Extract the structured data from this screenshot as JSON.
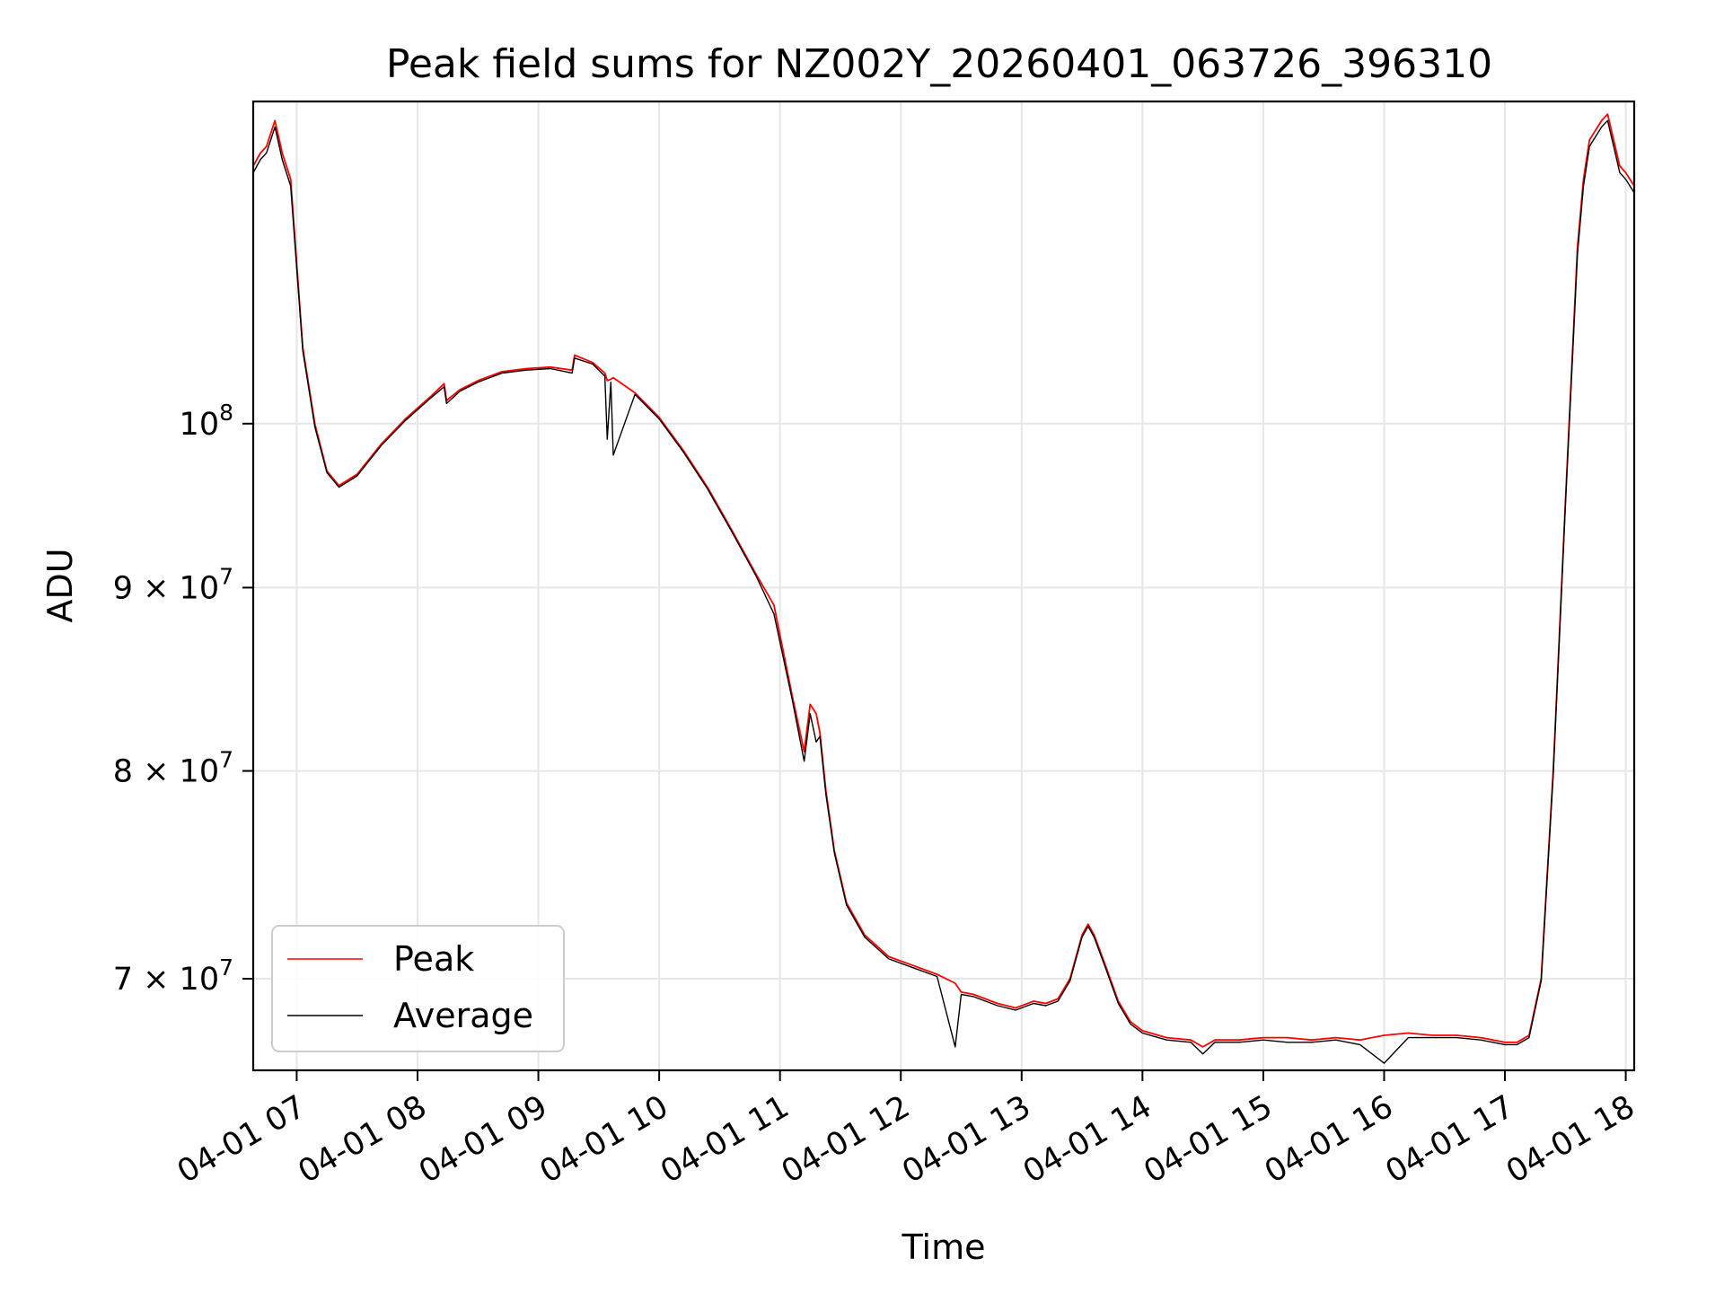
{
  "chart_data": {
    "type": "line",
    "title": "Peak field sums for NZ002Y_20260401_063726_396310",
    "xlabel": "Time",
    "ylabel": "ADU",
    "x_unit": "hours (2026-04-01, local time)",
    "xlim": [
      6.64,
      18.07
    ],
    "ylim": [
      66000000,
      123000000
    ],
    "yscale": "log",
    "grid": true,
    "legend_position": "lower-left",
    "x_ticks": [
      {
        "value": 7,
        "label": "04-01 07"
      },
      {
        "value": 8,
        "label": "04-01 08"
      },
      {
        "value": 9,
        "label": "04-01 09"
      },
      {
        "value": 10,
        "label": "04-01 10"
      },
      {
        "value": 11,
        "label": "04-01 11"
      },
      {
        "value": 12,
        "label": "04-01 12"
      },
      {
        "value": 13,
        "label": "04-01 13"
      },
      {
        "value": 14,
        "label": "04-01 14"
      },
      {
        "value": 15,
        "label": "04-01 15"
      },
      {
        "value": 16,
        "label": "04-01 16"
      },
      {
        "value": 17,
        "label": "04-01 17"
      },
      {
        "value": 18,
        "label": "04-01 18"
      }
    ],
    "y_ticks": [
      {
        "value": 70000000,
        "base": "7 × 10",
        "exp": "7"
      },
      {
        "value": 80000000,
        "base": "8 × 10",
        "exp": "7"
      },
      {
        "value": 90000000,
        "base": "9 × 10",
        "exp": "7"
      },
      {
        "value": 100000000,
        "base": "10",
        "exp": "8"
      }
    ],
    "series": [
      {
        "name": "Peak",
        "color": "#ff0000",
        "x": [
          6.64,
          6.7,
          6.75,
          6.82,
          6.88,
          6.95,
          7.05,
          7.15,
          7.25,
          7.35,
          7.5,
          7.7,
          7.9,
          8.1,
          8.22,
          8.24,
          8.35,
          8.5,
          8.7,
          8.9,
          9.1,
          9.28,
          9.3,
          9.45,
          9.55,
          9.57,
          9.6,
          9.62,
          9.8,
          10.0,
          10.2,
          10.4,
          10.6,
          10.8,
          10.95,
          11.1,
          11.2,
          11.25,
          11.3,
          11.33,
          11.38,
          11.45,
          11.55,
          11.7,
          11.9,
          12.1,
          12.3,
          12.45,
          12.5,
          12.6,
          12.8,
          12.95,
          13.1,
          13.2,
          13.3,
          13.4,
          13.5,
          13.55,
          13.6,
          13.7,
          13.8,
          13.9,
          14.0,
          14.2,
          14.4,
          14.5,
          14.6,
          14.8,
          15.0,
          15.2,
          15.4,
          15.6,
          15.8,
          16.0,
          16.2,
          16.4,
          16.6,
          16.8,
          17.0,
          17.1,
          17.2,
          17.3,
          17.4,
          17.5,
          17.6,
          17.65,
          17.7,
          17.8,
          17.85,
          17.9,
          17.95,
          18.0,
          18.07
        ],
        "y": [
          118000000,
          119000000,
          119500000,
          121500000,
          119000000,
          117000000,
          105000000,
          100000000,
          97000000,
          96100000,
          96800000,
          98700000,
          100300000,
          101700000,
          102600000,
          101500000,
          102200000,
          102800000,
          103400000,
          103600000,
          103700000,
          103500000,
          104500000,
          104000000,
          103300000,
          102800000,
          102900000,
          103000000,
          102000000,
          100400000,
          98300000,
          96000000,
          93400000,
          90800000,
          89000000,
          84000000,
          81000000,
          83500000,
          83000000,
          82000000,
          79000000,
          76000000,
          73500000,
          72000000,
          71000000,
          70600000,
          70200000,
          69800000,
          69400000,
          69300000,
          68900000,
          68700000,
          69000000,
          68900000,
          69100000,
          70000000,
          72000000,
          72500000,
          72000000,
          70500000,
          69000000,
          68100000,
          67700000,
          67400000,
          67300000,
          67000000,
          67300000,
          67300000,
          67400000,
          67400000,
          67300000,
          67400000,
          67300000,
          67500000,
          67600000,
          67500000,
          67500000,
          67400000,
          67200000,
          67200000,
          67500000,
          70000000,
          80000000,
          95000000,
          112000000,
          117000000,
          120000000,
          121500000,
          122000000,
          120000000,
          118000000,
          117500000,
          116500000
        ]
      },
      {
        "name": "Average",
        "color": "#000000",
        "x": [
          6.64,
          6.7,
          6.75,
          6.82,
          6.88,
          6.95,
          7.05,
          7.15,
          7.25,
          7.35,
          7.5,
          7.7,
          7.9,
          8.1,
          8.22,
          8.24,
          8.35,
          8.5,
          8.7,
          8.9,
          9.1,
          9.28,
          9.3,
          9.45,
          9.55,
          9.57,
          9.6,
          9.62,
          9.8,
          10.0,
          10.2,
          10.4,
          10.6,
          10.8,
          10.95,
          11.1,
          11.2,
          11.25,
          11.3,
          11.33,
          11.38,
          11.45,
          11.55,
          11.7,
          11.9,
          12.1,
          12.3,
          12.45,
          12.5,
          12.6,
          12.8,
          12.95,
          13.1,
          13.2,
          13.3,
          13.4,
          13.5,
          13.55,
          13.6,
          13.7,
          13.8,
          13.9,
          14.0,
          14.2,
          14.4,
          14.5,
          14.6,
          14.8,
          15.0,
          15.2,
          15.4,
          15.6,
          15.8,
          16.0,
          16.2,
          16.4,
          16.6,
          16.8,
          17.0,
          17.1,
          17.2,
          17.3,
          17.4,
          17.5,
          17.6,
          17.65,
          17.7,
          17.8,
          17.85,
          17.9,
          17.95,
          18.0,
          18.07
        ],
        "y": [
          117500000,
          118500000,
          119000000,
          121000000,
          118500000,
          116500000,
          104800000,
          99800000,
          96900000,
          96000000,
          96700000,
          98600000,
          100200000,
          101600000,
          102400000,
          101300000,
          102100000,
          102700000,
          103300000,
          103500000,
          103600000,
          103300000,
          104300000,
          103900000,
          103100000,
          99000000,
          102700000,
          98000000,
          101900000,
          100300000,
          98200000,
          95900000,
          93300000,
          90700000,
          88500000,
          83800000,
          80500000,
          83000000,
          81500000,
          81800000,
          78800000,
          75900000,
          73400000,
          71900000,
          70900000,
          70500000,
          70100000,
          67000000,
          69300000,
          69200000,
          68800000,
          68600000,
          68900000,
          68800000,
          69000000,
          69900000,
          71900000,
          72400000,
          71900000,
          70400000,
          68900000,
          68000000,
          67600000,
          67300000,
          67200000,
          66700000,
          67200000,
          67200000,
          67300000,
          67200000,
          67200000,
          67300000,
          67100000,
          66300000,
          67400000,
          67400000,
          67400000,
          67300000,
          67100000,
          67100000,
          67400000,
          69900000,
          79800000,
          94800000,
          111500000,
          116500000,
          119500000,
          121000000,
          121500000,
          119500000,
          117500000,
          117000000,
          116000000
        ]
      }
    ]
  }
}
